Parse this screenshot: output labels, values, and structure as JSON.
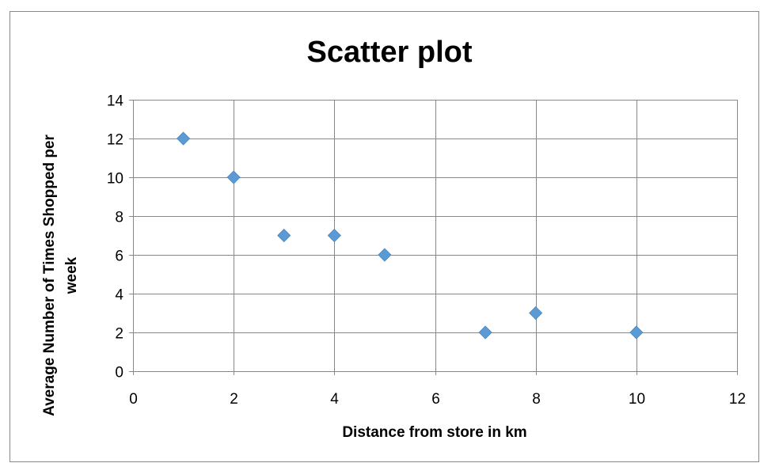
{
  "chart_data": {
    "type": "scatter",
    "title": "Scatter plot",
    "xlabel": "Distance from store in km",
    "ylabel": [
      "Average Number of Times Shopped per",
      "week"
    ],
    "xlim": [
      0,
      12
    ],
    "ylim": [
      0,
      14
    ],
    "xticks": [
      0,
      2,
      4,
      6,
      8,
      10,
      12
    ],
    "yticks": [
      0,
      2,
      4,
      6,
      8,
      10,
      12,
      14
    ],
    "grid": true,
    "legend": "none",
    "marker": "diamond",
    "color": "#5B9BD5",
    "series": [
      {
        "points": [
          {
            "x": 1,
            "y": 12
          },
          {
            "x": 2,
            "y": 10
          },
          {
            "x": 3,
            "y": 7
          },
          {
            "x": 4,
            "y": 7
          },
          {
            "x": 5,
            "y": 6
          },
          {
            "x": 7,
            "y": 2
          },
          {
            "x": 8,
            "y": 3
          },
          {
            "x": 10,
            "y": 2
          }
        ]
      }
    ]
  }
}
